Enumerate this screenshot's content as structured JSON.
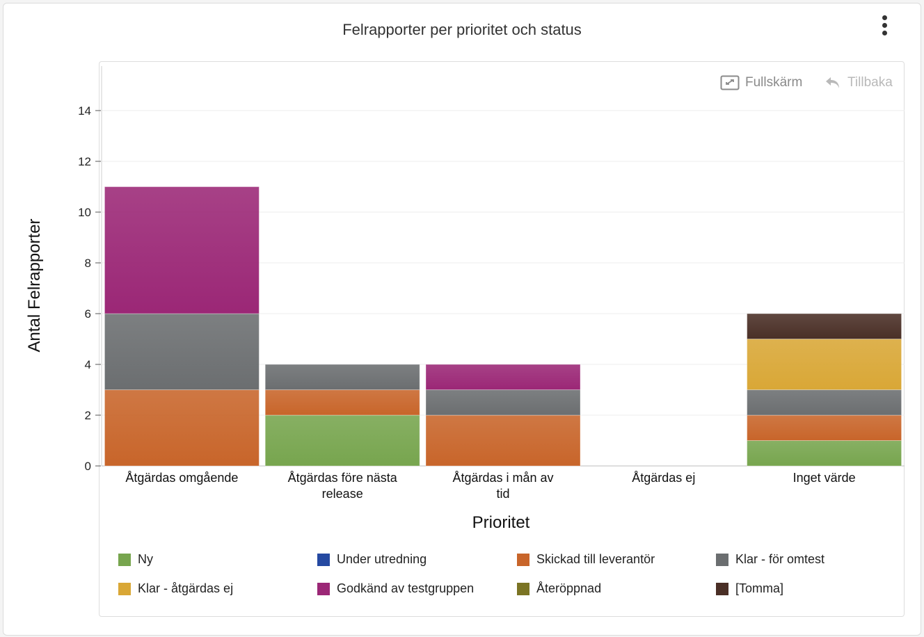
{
  "header": {
    "title": "Felrapporter per prioritet och status",
    "menu_icon": "kebab-menu-icon"
  },
  "toolbar": {
    "fullscreen_label": "Fullskärm",
    "fullscreen_icon": "expand-icon",
    "back_label": "Tillbaka",
    "back_icon": "undo-arrow-icon"
  },
  "chart_data": {
    "type": "bar",
    "stacked": true,
    "title": "Felrapporter per prioritet och status",
    "xlabel": "Prioritet",
    "ylabel": "Antal Felrapporter",
    "ylim": [
      0,
      15
    ],
    "yticks": [
      0,
      2,
      4,
      6,
      8,
      10,
      12,
      14
    ],
    "grid": true,
    "legend_position": "bottom",
    "categories": [
      "Åtgärdas omgående",
      "Åtgärdas före nästa release",
      "Åtgärdas i mån av tid",
      "Åtgärdas ej",
      "Inget värde"
    ],
    "series": [
      {
        "name": "Ny",
        "color": "#77a54e",
        "values": [
          0,
          2,
          0,
          0,
          1
        ]
      },
      {
        "name": "Under utredning",
        "color": "#2549a1",
        "values": [
          0,
          0,
          0,
          0,
          0
        ]
      },
      {
        "name": "Skickad till leverantör",
        "color": "#c8652a",
        "values": [
          3,
          1,
          2,
          0,
          1
        ]
      },
      {
        "name": "Klar - för omtest",
        "color": "#6b6e70",
        "values": [
          3,
          1,
          1,
          0,
          1
        ]
      },
      {
        "name": "Klar - åtgärdas ej",
        "color": "#d9a736",
        "values": [
          0,
          0,
          0,
          0,
          2
        ]
      },
      {
        "name": "Godkänd av testgruppen",
        "color": "#9b2776",
        "values": [
          5,
          0,
          1,
          0,
          0
        ]
      },
      {
        "name": "Återöppnad",
        "color": "#7b7424",
        "values": [
          0,
          0,
          0,
          0,
          0
        ]
      },
      {
        "name": "[Tomma]",
        "color": "#4a2f26",
        "values": [
          0,
          0,
          0,
          0,
          1
        ]
      }
    ]
  }
}
